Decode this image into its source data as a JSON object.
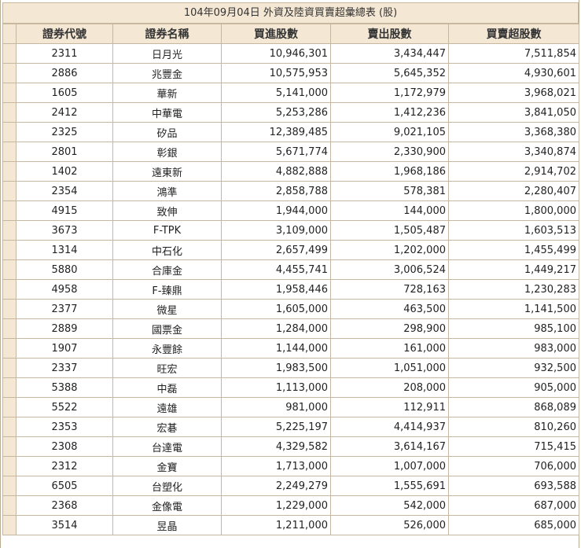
{
  "title": "104年09月04日 外資及陸資買賣超彙總表 (股)",
  "headers": [
    "證券代號",
    "證券名稱",
    "買進股數",
    "賣出股數",
    "買賣超股數"
  ],
  "rows": [
    {
      "code": "2311",
      "name": "日月光",
      "buy": "10,946,301",
      "sell": "3,434,447",
      "net": "7,511,854"
    },
    {
      "code": "2886",
      "name": "兆豐金",
      "buy": "10,575,953",
      "sell": "5,645,352",
      "net": "4,930,601"
    },
    {
      "code": "1605",
      "name": "華新",
      "buy": "5,141,000",
      "sell": "1,172,979",
      "net": "3,968,021"
    },
    {
      "code": "2412",
      "name": "中華電",
      "buy": "5,253,286",
      "sell": "1,412,236",
      "net": "3,841,050"
    },
    {
      "code": "2325",
      "name": "矽品",
      "buy": "12,389,485",
      "sell": "9,021,105",
      "net": "3,368,380"
    },
    {
      "code": "2801",
      "name": "彰銀",
      "buy": "5,671,774",
      "sell": "2,330,900",
      "net": "3,340,874"
    },
    {
      "code": "1402",
      "name": "遠東新",
      "buy": "4,882,888",
      "sell": "1,968,186",
      "net": "2,914,702"
    },
    {
      "code": "2354",
      "name": "鴻準",
      "buy": "2,858,788",
      "sell": "578,381",
      "net": "2,280,407"
    },
    {
      "code": "4915",
      "name": "致伸",
      "buy": "1,944,000",
      "sell": "144,000",
      "net": "1,800,000"
    },
    {
      "code": "3673",
      "name": "F-TPK",
      "buy": "3,109,000",
      "sell": "1,505,487",
      "net": "1,603,513"
    },
    {
      "code": "1314",
      "name": "中石化",
      "buy": "2,657,499",
      "sell": "1,202,000",
      "net": "1,455,499"
    },
    {
      "code": "5880",
      "name": "合庫金",
      "buy": "4,455,741",
      "sell": "3,006,524",
      "net": "1,449,217"
    },
    {
      "code": "4958",
      "name": "F-臻鼎",
      "buy": "1,958,446",
      "sell": "728,163",
      "net": "1,230,283"
    },
    {
      "code": "2377",
      "name": "微星",
      "buy": "1,605,000",
      "sell": "463,500",
      "net": "1,141,500"
    },
    {
      "code": "2889",
      "name": "國票金",
      "buy": "1,284,000",
      "sell": "298,900",
      "net": "985,100"
    },
    {
      "code": "1907",
      "name": "永豐餘",
      "buy": "1,144,000",
      "sell": "161,000",
      "net": "983,000"
    },
    {
      "code": "2337",
      "name": "旺宏",
      "buy": "1,983,500",
      "sell": "1,051,000",
      "net": "932,500"
    },
    {
      "code": "5388",
      "name": "中磊",
      "buy": "1,113,000",
      "sell": "208,000",
      "net": "905,000"
    },
    {
      "code": "5522",
      "name": "遠雄",
      "buy": "981,000",
      "sell": "112,911",
      "net": "868,089"
    },
    {
      "code": "2353",
      "name": "宏碁",
      "buy": "5,225,197",
      "sell": "4,414,937",
      "net": "810,260"
    },
    {
      "code": "2308",
      "name": "台達電",
      "buy": "4,329,582",
      "sell": "3,614,167",
      "net": "715,415"
    },
    {
      "code": "2312",
      "name": "金寶",
      "buy": "1,713,000",
      "sell": "1,007,000",
      "net": "706,000"
    },
    {
      "code": "6505",
      "name": "台塑化",
      "buy": "2,249,279",
      "sell": "1,555,691",
      "net": "693,588"
    },
    {
      "code": "2368",
      "name": "金像電",
      "buy": "1,229,000",
      "sell": "542,000",
      "net": "687,000"
    },
    {
      "code": "3514",
      "name": "昱晶",
      "buy": "1,211,000",
      "sell": "526,000",
      "net": "685,000"
    }
  ]
}
